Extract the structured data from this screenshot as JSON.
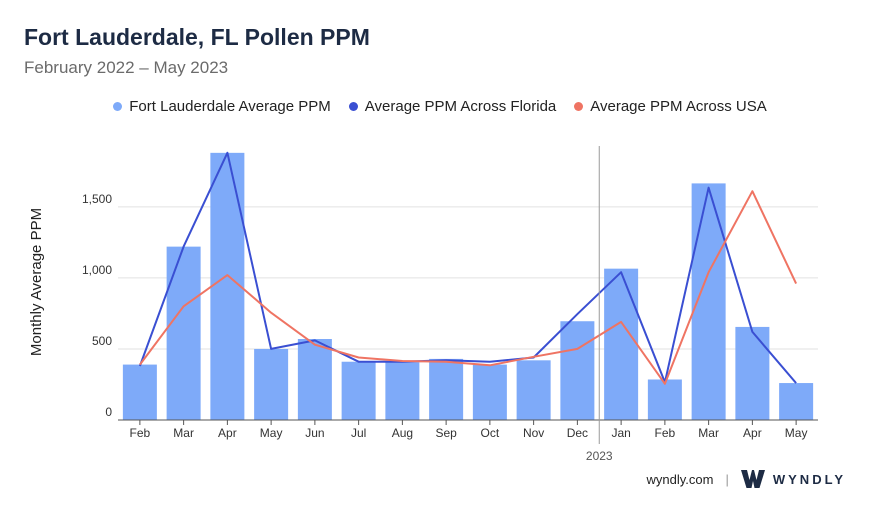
{
  "chart_data": {
    "type": "bar",
    "title": "Fort Lauderdale, FL Pollen PPM",
    "subtitle": "February 2022 – May 2023",
    "ylabel": "Monthly Average PPM",
    "xlabel": "",
    "ylim": [
      0,
      1900
    ],
    "yticks": [
      0,
      500,
      1000,
      1500
    ],
    "ytick_labels": [
      "0",
      "500",
      "1,000",
      "1,500"
    ],
    "categories": [
      "Feb",
      "Mar",
      "Apr",
      "May",
      "Jun",
      "Jul",
      "Aug",
      "Sep",
      "Oct",
      "Nov",
      "Dec",
      "Jan",
      "Feb",
      "Mar",
      "Apr",
      "May"
    ],
    "year_marker": {
      "label": "2023",
      "before_index": 11
    },
    "series": [
      {
        "name": "Fort Lauderdale Average PPM",
        "type": "bar",
        "color": "#7eaaf9",
        "values": [
          390,
          1220,
          1880,
          500,
          570,
          410,
          405,
          430,
          390,
          420,
          695,
          1065,
          285,
          1665,
          655,
          260
        ]
      },
      {
        "name": "Average PPM Across Florida",
        "type": "line",
        "color": "#3a4fd2",
        "values": [
          380,
          1220,
          1880,
          500,
          560,
          410,
          410,
          420,
          410,
          440,
          745,
          1040,
          265,
          1635,
          620,
          260
        ]
      },
      {
        "name": "Average PPM Across USA",
        "type": "line",
        "color": "#ef7463",
        "values": [
          390,
          800,
          1020,
          755,
          530,
          440,
          415,
          410,
          385,
          445,
          500,
          690,
          255,
          1040,
          1610,
          960
        ]
      }
    ],
    "grid": true
  },
  "footer": {
    "site": "wyndly.com",
    "separator": "|",
    "brand": "WYNDLY",
    "logo_icon": "wyndly-logo-icon"
  }
}
